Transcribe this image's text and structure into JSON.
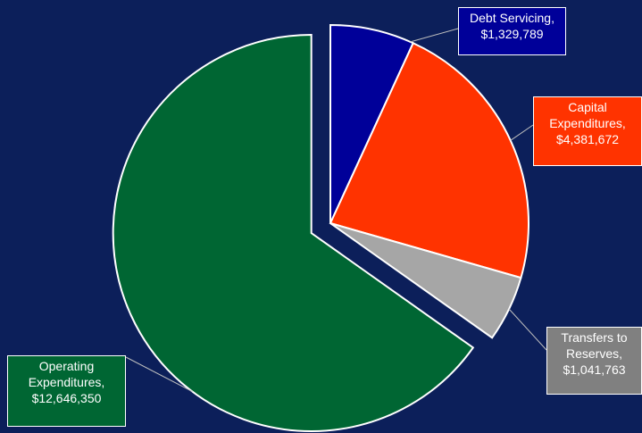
{
  "chart_data": {
    "type": "pie",
    "categories": [
      "Debt Servicing,",
      "Capital Expenditures,",
      "Transfers to Reserves,",
      "Operating Expenditures,"
    ],
    "values": [
      1329789,
      4381672,
      1041763,
      12646350
    ],
    "value_labels": [
      "$1,329,789",
      "$4,381,672",
      "$1,041,763",
      "$12,646,350"
    ],
    "colors": [
      "#000099",
      "#ff3300",
      "#a6a6a6",
      "#006633"
    ]
  }
}
